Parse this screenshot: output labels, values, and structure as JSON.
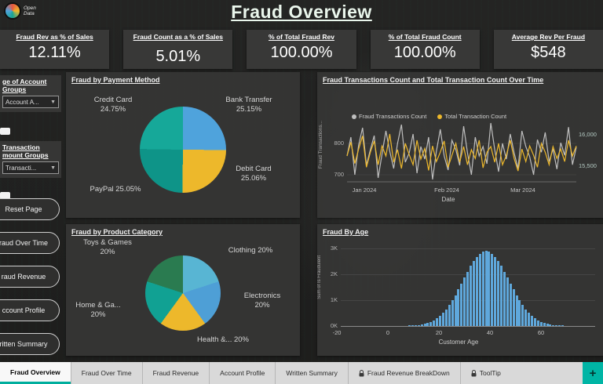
{
  "header": {
    "title": "Fraud Overview",
    "logo_line1": "Open",
    "logo_line2": "Data"
  },
  "kpis": [
    {
      "label": "Fraud Rev as % of Sales",
      "value": "12.11%"
    },
    {
      "label": "Fraud Count as a % of Sales",
      "value": "5.01%"
    },
    {
      "label": "% of Total Fraud Rev",
      "value": "100.00%"
    },
    {
      "label": "% of Total Fraud Count",
      "value": "100.00%"
    },
    {
      "label": "Average Rev Per Fraud",
      "value": "$548"
    }
  ],
  "sidebar": {
    "slicers": [
      {
        "title_line1": "ge of Account",
        "title_line2": "Groups",
        "value": "Account A...",
        "chevron": "▼"
      },
      {
        "title_line1": "Transaction",
        "title_line2": "mount Groups",
        "value": "Transacti...",
        "chevron": "▼"
      }
    ],
    "buttons": [
      {
        "label": "Reset Page"
      },
      {
        "label": "raud Over Time"
      },
      {
        "label": "raud Revenue"
      },
      {
        "label": "ccount Profile"
      },
      {
        "label": "ritten Summary"
      }
    ]
  },
  "panels": {
    "payment": {
      "title": "Fraud by Payment Method"
    },
    "time": {
      "title": "Fraud Transactions Count and Total Transaction Count Over Time",
      "legend": [
        {
          "label": "Fraud Transactions Count",
          "color": "#bfbfbf"
        },
        {
          "label": "Total Transaction Count",
          "color": "#edb82b"
        }
      ],
      "left_ticks": [
        "800",
        "700"
      ],
      "right_ticks": [
        "16,000",
        "15,500"
      ],
      "x_ticks": [
        "Jan 2024",
        "Feb 2024",
        "Mar 2024"
      ],
      "x_label": "Date",
      "y_label": "Fraud Transactions..."
    },
    "category": {
      "title": "Fraud by Product Category"
    },
    "age": {
      "title": "Fraud By Age",
      "x_label": "Customer Age",
      "y_label": "Sum of Is Fraudulent",
      "y_ticks": [
        "3K",
        "2K",
        "1K",
        "0K"
      ],
      "x_ticks": [
        "-20",
        "0",
        "20",
        "40",
        "60"
      ]
    }
  },
  "tabs": [
    {
      "label": "Fraud Overview",
      "active": true
    },
    {
      "label": "Fraud Over Time"
    },
    {
      "label": "Fraud Revenue"
    },
    {
      "label": "Account Profile"
    },
    {
      "label": "Written Summary"
    },
    {
      "label": "Fraud Revenue BreakDown",
      "locked": true
    },
    {
      "label": "ToolTip",
      "locked": true
    }
  ],
  "add_tab_label": "+",
  "colors": {
    "accent_teal": "#00ae9d",
    "bar_blue": "#5fa8dc",
    "line_gray": "#bfbfbf",
    "line_yellow": "#edb82b",
    "tabbar_bg": "#d9d9d9",
    "panel_bg": "#383838"
  },
  "chart_data": [
    {
      "type": "pie",
      "title": "Fraud by Payment Method",
      "slices": [
        {
          "label": "Bank Transfer",
          "value": 25.15,
          "pct": "25.15%",
          "color": "#4fa3dc"
        },
        {
          "label": "Debit Card",
          "value": 25.06,
          "pct": "25.06%",
          "color": "#edb82b"
        },
        {
          "label": "PayPal",
          "value": 25.05,
          "pct": "25.05%",
          "color": "#0e9488"
        },
        {
          "label": "Credit Card",
          "value": 24.75,
          "pct": "24.75%",
          "color": "#16a899"
        }
      ]
    },
    {
      "type": "line",
      "title": "Fraud Transactions Count and Total Transaction Count Over Time",
      "x_axis": {
        "label": "Date",
        "ticks": [
          "Jan 2024",
          "Feb 2024",
          "Mar 2024"
        ]
      },
      "left_axis": {
        "label": "Fraud Transactions...",
        "ticks": [
          700,
          800
        ]
      },
      "right_axis": {
        "ticks": [
          "15,500",
          "16,000"
        ]
      },
      "series": [
        {
          "name": "Fraud Transactions Count",
          "color": "#bfbfbf",
          "axis": "left",
          "values": [
            760,
            820,
            700,
            795,
            850,
            730,
            780,
            825,
            690,
            765,
            840,
            775,
            720,
            800,
            860,
            740,
            770,
            830,
            705,
            790,
            750,
            820,
            685,
            775,
            845,
            760,
            715,
            810,
            780,
            730,
            855,
            770,
            700,
            820,
            760,
            790,
            735,
            865,
            780,
            710,
            800,
            750,
            830,
            770,
            720,
            840,
            790,
            758,
            700,
            812,
            772,
            835,
            742,
            782,
            718,
            802,
            762,
            852,
            732,
            788
          ]
        },
        {
          "name": "Total Transaction Count",
          "color": "#edb82b",
          "axis": "right",
          "values": [
            15700,
            15920,
            15580,
            15810,
            16020,
            15520,
            15760,
            15940,
            15560,
            15860,
            15700,
            16050,
            15600,
            15800,
            15500,
            15900,
            15720,
            15560,
            15950,
            15650,
            15820,
            15470,
            15860,
            15610,
            15760,
            15940,
            15520,
            15710,
            15900,
            15600,
            15850,
            15560,
            15800,
            15660,
            15950,
            15510,
            15760,
            15850,
            15600,
            15900,
            15560,
            15710,
            15950,
            15660,
            15460,
            15810,
            15610,
            15860,
            15710,
            15520,
            15900,
            15760,
            15560,
            15850,
            15660,
            15810,
            15610,
            15950,
            15700,
            15860
          ]
        }
      ]
    },
    {
      "type": "pie",
      "title": "Fraud by Product Category",
      "slices": [
        {
          "label": "Clothing",
          "value": 20,
          "pct": "20%",
          "color": "#58b5d3"
        },
        {
          "label": "Electronics",
          "value": 20,
          "pct": "20%",
          "color": "#4e9fd6"
        },
        {
          "label": "Health &...",
          "value": 20,
          "pct": "20%",
          "color": "#edb82b"
        },
        {
          "label": "Home & Ga...",
          "value": 20,
          "pct": "20%",
          "color": "#11a193"
        },
        {
          "label": "Toys & Games",
          "value": 20,
          "pct": "20%",
          "color": "#2a7b50"
        }
      ]
    },
    {
      "type": "bar",
      "title": "Fraud By Age",
      "xlabel": "Customer Age",
      "ylabel": "Sum of Is Fraudulent",
      "x_ticks": [
        -20,
        0,
        20,
        40,
        60
      ],
      "y_ticks": [
        "0K",
        "1K",
        "2K",
        "3K"
      ],
      "ylim": [
        0,
        3000
      ],
      "start_age": 8,
      "age_step": 1.2,
      "values": [
        11,
        17,
        26,
        39,
        57,
        83,
        117,
        163,
        222,
        297,
        392,
        508,
        646,
        806,
        990,
        1192,
        1412,
        1641,
        1875,
        2106,
        2322,
        2515,
        2677,
        2799,
        2874,
        2900,
        2874,
        2799,
        2677,
        2515,
        2322,
        2106,
        1875,
        1641,
        1412,
        1192,
        990,
        806,
        646,
        508,
        392,
        297,
        222,
        163,
        117,
        83,
        57,
        39,
        26,
        17,
        11
      ]
    }
  ]
}
